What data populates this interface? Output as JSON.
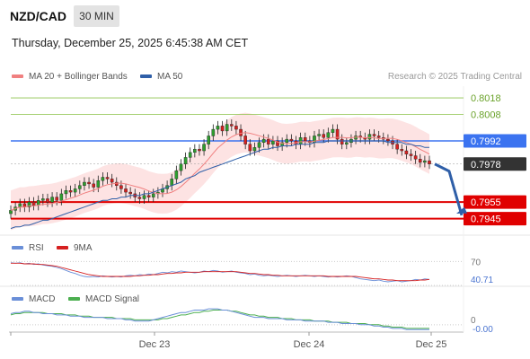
{
  "header": {
    "pair": "NZD/CAD",
    "timeframe": "30 MIN",
    "timestamp": "Thursday, December 25, 2025 6:45:38 AM CET",
    "credit": "Research © 2025 Trading Central"
  },
  "legend": {
    "ma20": "MA 20 + Bollinger Bands",
    "ma50": "MA 50",
    "rsi": "RSI",
    "rsi_ma": "9MA",
    "macd": "MACD",
    "macd_signal": "MACD Signal"
  },
  "colors": {
    "ma20": "#f08080",
    "bollinger_fill": "#fde3e3",
    "ma50": "#2f5fa8",
    "candle_up": "#2e9e2e",
    "candle_down": "#d62020",
    "pivot": "#3b73f0",
    "support": "#e00000",
    "resistance": "#8bc34a",
    "arrow": "#2f5fa8",
    "rsi": "#6a8fd8",
    "rsi_ma": "#d62020",
    "macd": "#6a8fd8",
    "macd_signal": "#4caf50"
  },
  "chart_data": [
    {
      "type": "candlestick",
      "x_ticks": [
        "Dec 23",
        "Dec 24",
        "Dec 25"
      ],
      "levels": [
        {
          "price": 0.8018,
          "label": "0.8018",
          "kind": "resistance"
        },
        {
          "price": 0.8008,
          "label": "0.8008",
          "kind": "resistance"
        },
        {
          "price": 0.7992,
          "label": "0.7992",
          "kind": "pivot"
        },
        {
          "price": 0.7978,
          "label": "0.7978",
          "kind": "last"
        },
        {
          "price": 0.7955,
          "label": "0.7955",
          "kind": "support"
        },
        {
          "price": 0.7945,
          "label": "0.7945",
          "kind": "support"
        }
      ],
      "close": [
        0.795,
        0.7952,
        0.7954,
        0.7952,
        0.7955,
        0.7953,
        0.7956,
        0.7957,
        0.7955,
        0.7958,
        0.7956,
        0.796,
        0.7962,
        0.7961,
        0.7963,
        0.7965,
        0.7967,
        0.7966,
        0.7964,
        0.7968,
        0.797,
        0.7969,
        0.7967,
        0.7965,
        0.7963,
        0.7961,
        0.796,
        0.7958,
        0.7957,
        0.7959,
        0.7958,
        0.796,
        0.7961,
        0.7963,
        0.7965,
        0.7969,
        0.7974,
        0.7978,
        0.7982,
        0.7985,
        0.7987,
        0.7986,
        0.799,
        0.7995,
        0.7999,
        0.8001,
        0.7998,
        0.8002,
        0.8001,
        0.7999,
        0.7995,
        0.799,
        0.7986,
        0.7988,
        0.7991,
        0.7993,
        0.799,
        0.7992,
        0.7989,
        0.7991,
        0.7993,
        0.7992,
        0.799,
        0.7994,
        0.7992,
        0.7991,
        0.7995,
        0.7996,
        0.7994,
        0.7997,
        0.7999,
        0.7993,
        0.799,
        0.7991,
        0.7993,
        0.7995,
        0.7994,
        0.7993,
        0.7996,
        0.7995,
        0.7994,
        0.7993,
        0.7992,
        0.799,
        0.7987,
        0.7986,
        0.7984,
        0.7983,
        0.7981,
        0.7979,
        0.798,
        0.7978
      ],
      "ma50": [
        0.7939,
        0.794,
        0.794,
        0.7941,
        0.7941,
        0.7942,
        0.7943,
        0.7944,
        0.7944,
        0.7945,
        0.7946,
        0.7947,
        0.7948,
        0.7949,
        0.795,
        0.7951,
        0.7952,
        0.7953,
        0.7954,
        0.7955,
        0.7956,
        0.7956,
        0.7957,
        0.7957,
        0.7958,
        0.7958,
        0.7959,
        0.7959,
        0.7959,
        0.796,
        0.796,
        0.7961,
        0.7962,
        0.7963,
        0.7964,
        0.7965,
        0.7966,
        0.7967,
        0.7969,
        0.797,
        0.7971,
        0.7973,
        0.7974,
        0.7975,
        0.7976,
        0.7977,
        0.7978,
        0.7979,
        0.798,
        0.7981,
        0.7982,
        0.7983,
        0.7984,
        0.7985,
        0.7986,
        0.7987,
        0.7987,
        0.7988,
        0.7988,
        0.7989,
        0.7989,
        0.7989,
        0.799,
        0.799,
        0.799,
        0.799,
        0.7991,
        0.7991,
        0.7991,
        0.7992,
        0.7992,
        0.7992,
        0.7992,
        0.7992,
        0.7992,
        0.7992,
        0.7992,
        0.7992,
        0.7992,
        0.7992,
        0.7992,
        0.7992,
        0.7991,
        0.7991,
        0.7991,
        0.7991,
        0.799,
        0.799,
        0.7989,
        0.7989,
        0.7988,
        0.7988
      ]
    },
    {
      "type": "line",
      "name": "RSI",
      "level_labels": [
        "70",
        "40.71"
      ],
      "level_values": [
        70,
        40.71
      ],
      "ylim": [
        30,
        75
      ],
      "rsi": [
        68,
        67,
        68,
        66,
        67,
        65,
        66,
        64,
        63,
        62,
        60,
        58,
        55,
        52,
        50,
        47,
        45,
        44,
        45,
        44,
        46,
        45,
        44,
        45,
        44,
        46,
        47,
        46,
        48,
        47,
        49,
        48,
        50,
        52,
        51,
        53,
        52,
        54,
        53,
        52,
        51,
        52,
        54,
        53,
        55,
        54,
        52,
        53,
        54,
        52,
        51,
        50,
        48,
        49,
        47,
        46,
        47,
        46,
        45,
        46,
        47,
        46,
        45,
        46,
        47,
        46,
        45,
        46,
        45,
        44,
        45,
        44,
        45,
        46,
        45,
        43,
        41,
        40,
        39,
        38,
        39,
        37,
        36,
        37,
        38,
        36,
        37,
        38,
        40,
        39,
        41,
        40
      ],
      "ma9": [
        67,
        67,
        67,
        66,
        66,
        66,
        65,
        65,
        64,
        63,
        62,
        60,
        58,
        56,
        54,
        52,
        50,
        48,
        47,
        46,
        45,
        45,
        45,
        45,
        45,
        45,
        45,
        46,
        46,
        47,
        47,
        48,
        48,
        49,
        50,
        50,
        51,
        51,
        52,
        52,
        52,
        52,
        53,
        53,
        53,
        53,
        53,
        53,
        53,
        53,
        52,
        51,
        50,
        50,
        49,
        48,
        48,
        47,
        47,
        46,
        46,
        46,
        46,
        46,
        46,
        46,
        46,
        46,
        46,
        45,
        45,
        45,
        45,
        45,
        45,
        45,
        44,
        43,
        42,
        41,
        41,
        40,
        39,
        39,
        38,
        38,
        38,
        38,
        38,
        39,
        39,
        40
      ]
    },
    {
      "type": "line",
      "name": "MACD",
      "level_labels": [
        "0",
        "-0.00"
      ],
      "level_values": [
        0,
        0
      ],
      "ylim": [
        -0.0006,
        0.0016
      ],
      "macd": [
        0.0009,
        0.001,
        0.001,
        0.0011,
        0.0011,
        0.001,
        0.001,
        0.0009,
        0.0009,
        0.0009,
        0.0008,
        0.0008,
        0.0008,
        0.0007,
        0.0007,
        0.0007,
        0.0006,
        0.0006,
        0.0006,
        0.0006,
        0.0006,
        0.0005,
        0.0005,
        0.0005,
        0.0005,
        0.0004,
        0.0004,
        0.0003,
        0.0003,
        0.0003,
        0.0003,
        0.0004,
        0.0005,
        0.0006,
        0.0007,
        0.0008,
        0.0009,
        0.001,
        0.001,
        0.0011,
        0.0012,
        0.0012,
        0.0012,
        0.0013,
        0.0013,
        0.0013,
        0.0012,
        0.0012,
        0.0011,
        0.001,
        0.0009,
        0.0008,
        0.0007,
        0.0006,
        0.0006,
        0.0006,
        0.0005,
        0.0005,
        0.0005,
        0.0005,
        0.0004,
        0.0004,
        0.0004,
        0.0004,
        0.0003,
        0.0003,
        0.0003,
        0.0003,
        0.0003,
        0.0002,
        0.0002,
        0.0002,
        0.0001,
        0.0001,
        0.0001,
        0.0001,
        0.0,
        0.0,
        0.0,
        -0.0001,
        -0.0001,
        -0.0002,
        -0.0002,
        -0.0003,
        -0.0003,
        -0.0003,
        -0.0004,
        -0.0004,
        -0.0004,
        -0.0004,
        -0.0004,
        -0.0004
      ],
      "signal": [
        0.0008,
        0.0009,
        0.0009,
        0.001,
        0.001,
        0.001,
        0.001,
        0.001,
        0.0009,
        0.0009,
        0.0009,
        0.0009,
        0.0008,
        0.0008,
        0.0008,
        0.0007,
        0.0007,
        0.0007,
        0.0006,
        0.0006,
        0.0006,
        0.0006,
        0.0006,
        0.0005,
        0.0005,
        0.0005,
        0.0005,
        0.0004,
        0.0004,
        0.0004,
        0.0004,
        0.0004,
        0.0004,
        0.0005,
        0.0005,
        0.0006,
        0.0007,
        0.0008,
        0.0008,
        0.0009,
        0.001,
        0.001,
        0.0011,
        0.0011,
        0.0012,
        0.0012,
        0.0012,
        0.0012,
        0.0011,
        0.0011,
        0.001,
        0.0009,
        0.0008,
        0.0008,
        0.0007,
        0.0007,
        0.0006,
        0.0006,
        0.0006,
        0.0005,
        0.0005,
        0.0005,
        0.0004,
        0.0004,
        0.0004,
        0.0004,
        0.0003,
        0.0003,
        0.0003,
        0.0003,
        0.0002,
        0.0002,
        0.0002,
        0.0002,
        0.0001,
        0.0001,
        0.0001,
        0.0001,
        0.0,
        0.0,
        0.0,
        -0.0001,
        -0.0001,
        -0.0002,
        -0.0002,
        -0.0002,
        -0.0003,
        -0.0003,
        -0.0003,
        -0.0003,
        -0.0003,
        -0.0003
      ]
    }
  ]
}
